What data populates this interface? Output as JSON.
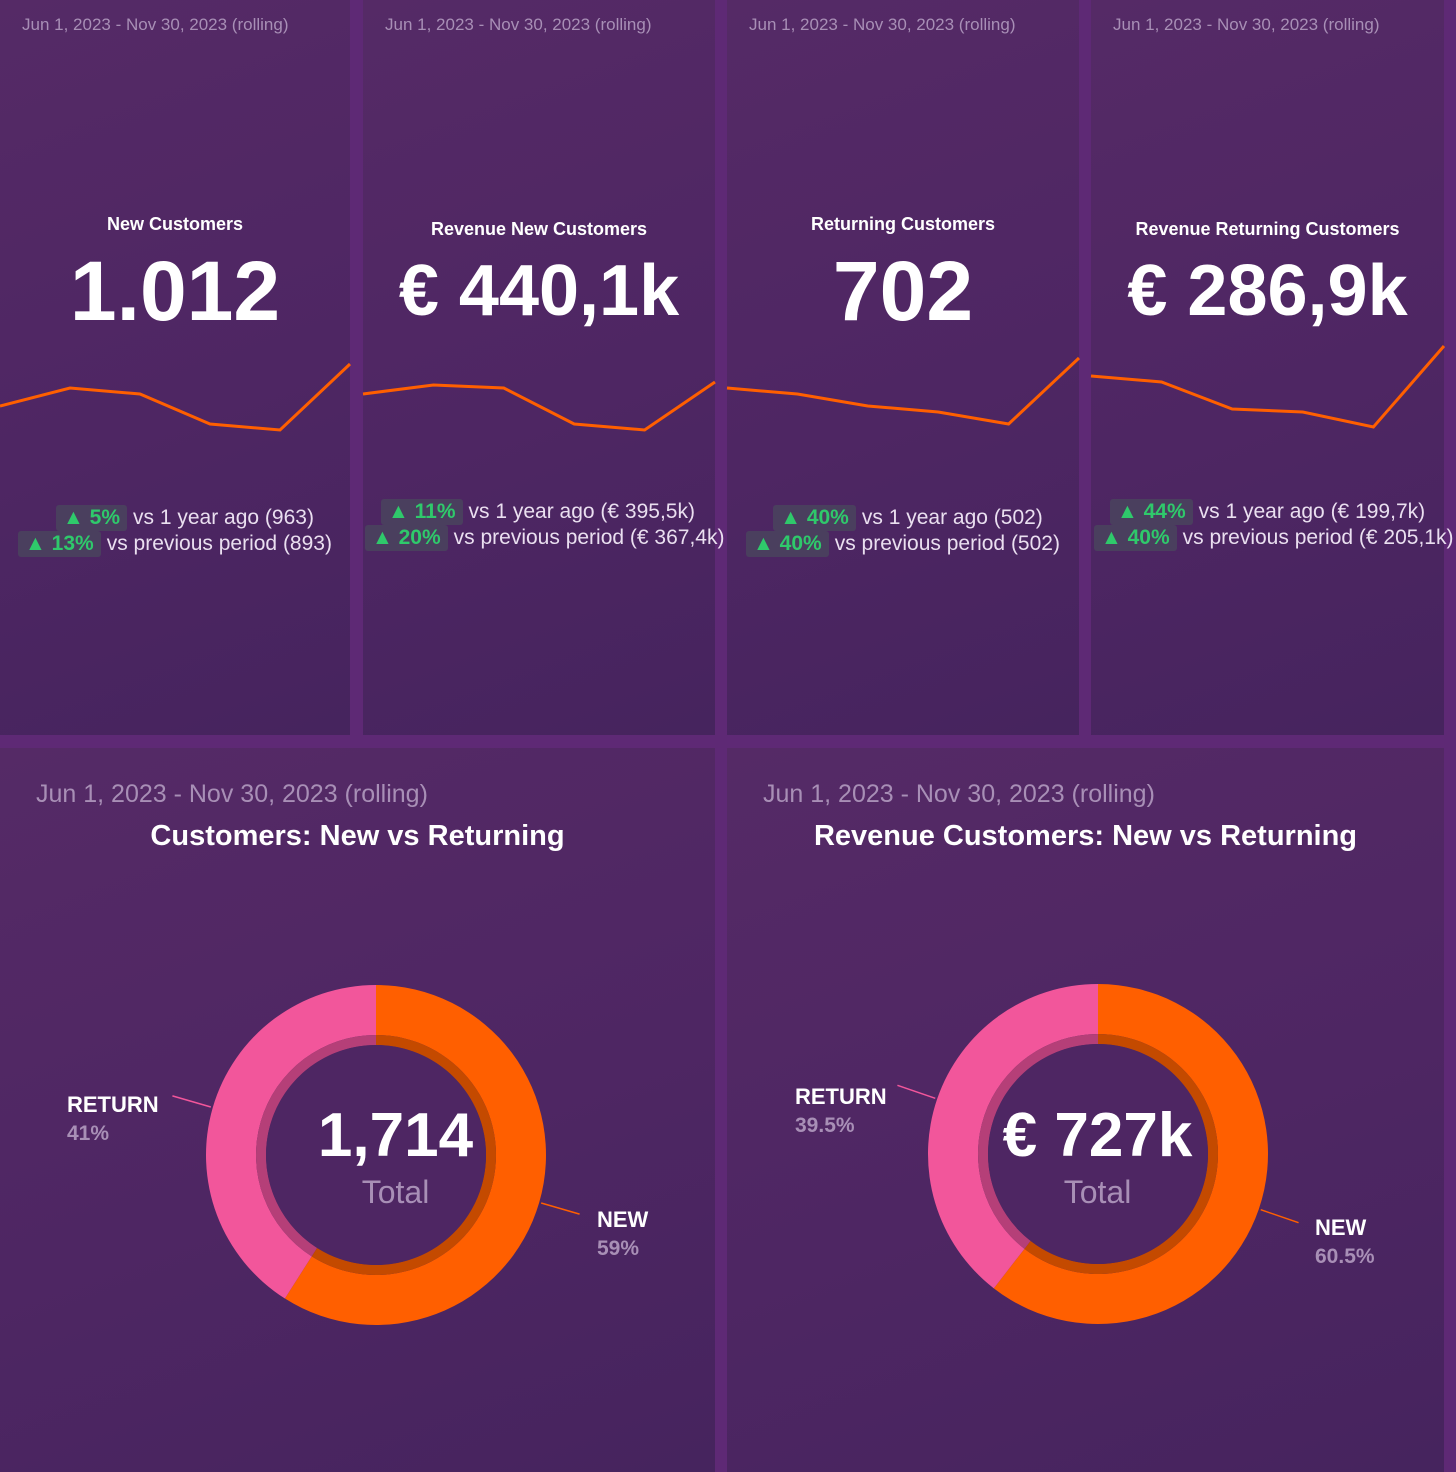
{
  "colors": {
    "accent": "#ff5f00",
    "pink": "#f2569b",
    "positive": "#2fc96b",
    "background": "#4e2663"
  },
  "kpis": [
    {
      "date": "Jun 1, 2023 - Nov 30, 2023 (rolling)",
      "title": "New Customers",
      "value": "1.012",
      "cmp1_pct": "▲ 5%",
      "cmp1_text": "vs 1 year ago (963)",
      "cmp2_pct": "▲ 13%",
      "cmp2_text": "vs previous period (893)"
    },
    {
      "date": "Jun 1, 2023 - Nov 30, 2023 (rolling)",
      "title": "Revenue New Customers",
      "value": "€ 440,1k",
      "cmp1_pct": "▲ 11%",
      "cmp1_text": "vs 1 year ago (€ 395,5k)",
      "cmp2_pct": "▲ 20%",
      "cmp2_text": "vs previous period (€ 367,4k)"
    },
    {
      "date": "Jun 1, 2023 - Nov 30, 2023 (rolling)",
      "title": "Returning Customers",
      "value": "702",
      "cmp1_pct": "▲ 40%",
      "cmp1_text": "vs 1 year ago (502)",
      "cmp2_pct": "▲ 40%",
      "cmp2_text": "vs previous period (502)"
    },
    {
      "date": "Jun 1, 2023 - Nov 30, 2023 (rolling)",
      "title": "Revenue Returning Customers",
      "value": "€ 286,9k",
      "cmp1_pct": "▲ 44%",
      "cmp1_text": "vs 1 year ago (€ 199,7k)",
      "cmp2_pct": "▲ 40%",
      "cmp2_text": "vs previous period (€ 205,1k)"
    }
  ],
  "donuts": [
    {
      "date": "Jun 1, 2023 - Nov 30, 2023 (rolling)",
      "title": "Customers: New vs Returning",
      "center_value": "1,714",
      "center_label": "Total",
      "new_label": "NEW",
      "new_pct": "59%",
      "return_label": "RETURN",
      "return_pct": "41%"
    },
    {
      "date": "Jun 1, 2023 - Nov 30, 2023 (rolling)",
      "title": "Revenue Customers: New vs Returning",
      "center_value": "€ 727k",
      "center_label": "Total",
      "new_label": "NEW",
      "new_pct": "60.5%",
      "return_label": "RETURN",
      "return_pct": "39.5%"
    }
  ],
  "chart_data": [
    {
      "type": "line",
      "title": "New Customers",
      "x": [
        1,
        2,
        3,
        4,
        5,
        6
      ],
      "values": [
        78,
        84,
        82,
        72,
        70,
        92
      ]
    },
    {
      "type": "line",
      "title": "Revenue New Customers",
      "x": [
        1,
        2,
        3,
        4,
        5,
        6
      ],
      "values": [
        82,
        85,
        84,
        72,
        70,
        86
      ]
    },
    {
      "type": "line",
      "title": "Returning Customers",
      "x": [
        1,
        2,
        3,
        4,
        5,
        6
      ],
      "values": [
        84,
        82,
        78,
        76,
        72,
        94
      ]
    },
    {
      "type": "line",
      "title": "Revenue Returning Customers",
      "x": [
        1,
        2,
        3,
        4,
        5,
        6
      ],
      "values": [
        88,
        86,
        77,
        76,
        71,
        98
      ]
    },
    {
      "type": "pie",
      "title": "Customers: New vs Returning",
      "categories": [
        "NEW",
        "RETURN"
      ],
      "values": [
        59,
        41
      ]
    },
    {
      "type": "pie",
      "title": "Revenue Customers: New vs Returning",
      "categories": [
        "NEW",
        "RETURN"
      ],
      "values": [
        60.5,
        39.5
      ]
    }
  ]
}
